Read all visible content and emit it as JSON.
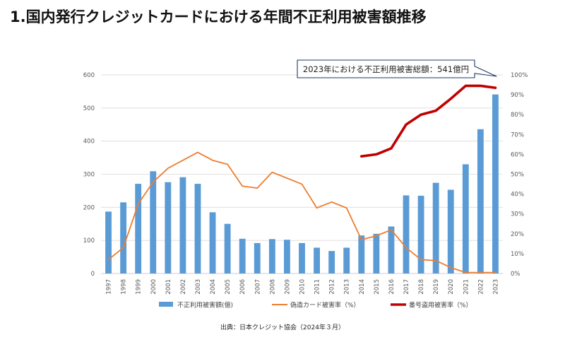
{
  "page": {
    "title": "1.国内発行クレジットカードにおける年間不正利用被害額推移",
    "source": "出典：日本クレジット協会（2024年３月）"
  },
  "colors": {
    "bar": "#5B9BD5",
    "counterfeit_line": "#ED7D31",
    "number_theft_line": "#C00000",
    "grid": "#d9d9d9",
    "axis_text": "#595959"
  },
  "chart_data": {
    "type": "bar",
    "title": "",
    "categories": [
      "1997",
      "1998",
      "1999",
      "2000",
      "2001",
      "2002",
      "2003",
      "2004",
      "2005",
      "2006",
      "2007",
      "2008",
      "2009",
      "2010",
      "2011",
      "2012",
      "2013",
      "2014",
      "2015",
      "2016",
      "2017",
      "2018",
      "2019",
      "2020",
      "2021",
      "2022",
      "2023"
    ],
    "series": [
      {
        "name": "不正利用被害額(億)",
        "type": "bar",
        "axis": "left",
        "values": [
          187,
          215,
          271,
          309,
          276,
          291,
          271,
          185,
          150,
          105,
          92,
          104,
          102,
          92,
          78,
          68,
          78,
          115,
          120,
          142,
          236,
          235,
          274,
          253,
          330,
          436,
          541
        ]
      },
      {
        "name": "偽造カード被害率（%）",
        "type": "line",
        "axis": "right",
        "values": [
          7,
          13,
          35,
          46,
          53,
          57,
          61,
          57,
          55,
          44,
          43,
          51,
          48,
          45,
          33,
          36,
          33,
          17,
          19,
          22,
          13,
          7,
          6.5,
          3,
          0.5,
          0.5,
          0.5
        ]
      },
      {
        "name": "番号盗用被害率（%）",
        "type": "line",
        "axis": "right",
        "values": [
          null,
          null,
          null,
          null,
          null,
          null,
          null,
          null,
          null,
          null,
          null,
          null,
          null,
          null,
          null,
          null,
          null,
          59,
          60,
          63,
          75,
          80,
          82,
          88,
          94.5,
          94.5,
          93.5
        ]
      }
    ],
    "y_left": {
      "range": [
        0,
        600
      ],
      "ticks": [
        "0",
        "100",
        "200",
        "300",
        "400",
        "500",
        "600"
      ]
    },
    "y_right": {
      "range": [
        0,
        100
      ],
      "ticks": [
        "0%",
        "10%",
        "20%",
        "30%",
        "40%",
        "50%",
        "60%",
        "70%",
        "80%",
        "90%",
        "100%"
      ]
    },
    "grid": true,
    "legend_position": "bottom",
    "annotation": "2023年における不正利用被害総額：541億円"
  }
}
